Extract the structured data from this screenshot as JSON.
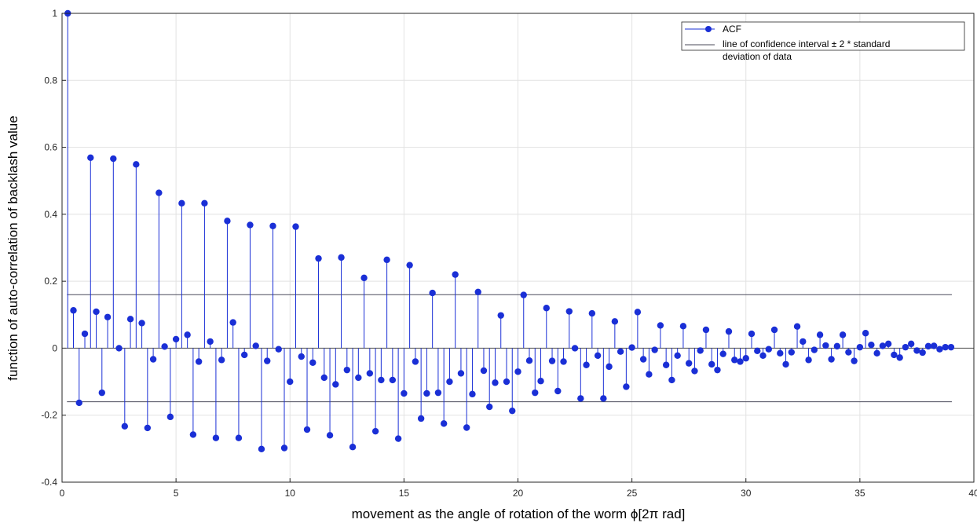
{
  "chart_data": {
    "type": "stem",
    "xlabel": "movement as the angle of rotation of the worm ϕ[2π rad]",
    "ylabel": "function of auto-correlation of backlash value",
    "xlim": [
      0,
      40
    ],
    "ylim": [
      -0.4,
      1
    ],
    "xticks": [
      "0",
      "5",
      "10",
      "15",
      "20",
      "25",
      "30",
      "35",
      "40"
    ],
    "yticks": [
      "-0.4",
      "-0.2",
      "0",
      "0.2",
      "0.4",
      "0.6",
      "0.8",
      "1"
    ],
    "grid": true,
    "legend_position": "top-right",
    "legend": {
      "acf": "ACF",
      "confidence_line1": "line of confidence interval ± 2 * standard",
      "confidence_line2": "deviation of data"
    },
    "confidence_bound": 0.16,
    "series": [
      {
        "name": "ACF",
        "color": "#1a2fd6",
        "x": [
          0.25,
          0.5,
          0.75,
          1,
          1.25,
          1.5,
          1.75,
          2,
          2.25,
          2.5,
          2.75,
          3,
          3.25,
          3.5,
          3.75,
          4,
          4.25,
          4.5,
          4.75,
          5,
          5.25,
          5.5,
          5.75,
          6,
          6.25,
          6.5,
          6.75,
          7,
          7.25,
          7.5,
          7.75,
          8,
          8.25,
          8.5,
          8.75,
          9,
          9.25,
          9.5,
          9.75,
          10,
          10.25,
          10.5,
          10.75,
          11,
          11.25,
          11.5,
          11.75,
          12,
          12.25,
          12.5,
          12.75,
          13,
          13.25,
          13.5,
          13.75,
          14,
          14.25,
          14.5,
          14.75,
          15,
          15.25,
          15.5,
          15.75,
          16,
          16.25,
          16.5,
          16.75,
          17,
          17.25,
          17.5,
          17.75,
          18,
          18.25,
          18.5,
          18.75,
          19,
          19.25,
          19.5,
          19.75,
          20,
          20.25,
          20.5,
          20.75,
          21,
          21.25,
          21.5,
          21.75,
          22,
          22.25,
          22.5,
          22.75,
          23,
          23.25,
          23.5,
          23.75,
          24,
          24.25,
          24.5,
          24.75,
          25,
          25.25,
          25.5,
          25.75,
          26,
          26.25,
          26.5,
          26.75,
          27,
          27.25,
          27.5,
          27.75,
          28,
          28.25,
          28.5,
          28.75,
          29,
          29.25,
          29.5,
          29.75,
          30,
          30.25,
          30.5,
          30.75,
          31,
          31.25,
          31.5,
          31.75,
          32,
          32.25,
          32.5,
          32.75,
          33,
          33.25,
          33.5,
          33.75,
          34,
          34.25,
          34.5,
          34.75,
          35,
          35.25,
          35.5,
          35.75,
          36,
          36.25,
          36.5,
          36.75,
          37,
          37.25,
          37.5,
          37.75,
          38,
          38.25,
          38.5,
          38.75,
          39
        ],
        "values": [
          1,
          0.113,
          -0.163,
          0.043,
          0.569,
          0.109,
          -0.133,
          0.093,
          0.566,
          0,
          -0.233,
          0.087,
          0.549,
          0.075,
          -0.238,
          -0.033,
          0.464,
          0.005,
          -0.205,
          0.027,
          0.433,
          0.04,
          -0.258,
          -0.04,
          0.433,
          0.02,
          -0.268,
          -0.035,
          0.38,
          0.077,
          -0.268,
          -0.02,
          0.368,
          0.007,
          -0.301,
          -0.038,
          0.365,
          -0.003,
          -0.298,
          -0.1,
          0.363,
          -0.025,
          -0.243,
          -0.043,
          0.268,
          -0.088,
          -0.26,
          -0.108,
          0.271,
          -0.065,
          -0.295,
          -0.088,
          0.21,
          -0.075,
          -0.248,
          -0.095,
          0.264,
          -0.095,
          -0.27,
          -0.135,
          0.248,
          -0.04,
          -0.21,
          -0.135,
          0.165,
          -0.133,
          -0.225,
          -0.1,
          0.22,
          -0.075,
          -0.237,
          -0.137,
          0.168,
          -0.067,
          -0.175,
          -0.103,
          0.098,
          -0.1,
          -0.187,
          -0.07,
          0.159,
          -0.037,
          -0.133,
          -0.098,
          0.12,
          -0.038,
          -0.128,
          -0.04,
          0.11,
          0,
          -0.15,
          -0.05,
          0.104,
          -0.022,
          -0.15,
          -0.055,
          0.08,
          -0.01,
          -0.115,
          0.002,
          0.108,
          -0.033,
          -0.078,
          -0.005,
          0.068,
          -0.05,
          -0.095,
          -0.022,
          0.066,
          -0.045,
          -0.068,
          -0.007,
          0.055,
          -0.048,
          -0.065,
          -0.017,
          0.05,
          -0.035,
          -0.04,
          -0.03,
          0.043,
          -0.008,
          -0.022,
          -0.003,
          0.055,
          -0.015,
          -0.048,
          -0.012,
          0.065,
          0.02,
          -0.035,
          -0.005,
          0.04,
          0.008,
          -0.033,
          0.006,
          0.04,
          -0.012,
          -0.038,
          0.003,
          0.045,
          0.01,
          -0.015,
          0.007,
          0.013,
          -0.02,
          -0.028,
          0.003,
          0.013,
          -0.007,
          -0.013,
          0.006,
          0.007,
          -0.003,
          0.003,
          0.003
        ]
      }
    ]
  }
}
